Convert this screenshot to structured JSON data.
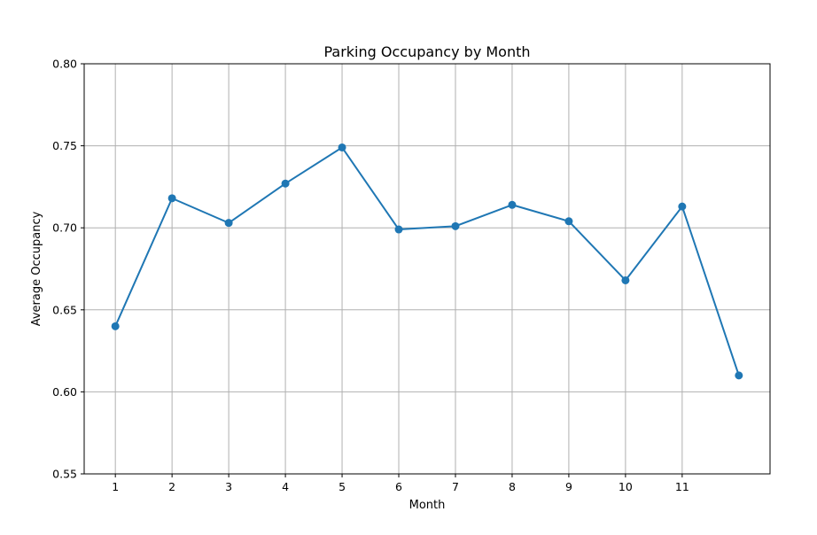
{
  "chart_data": {
    "type": "line",
    "title": "Parking Occupancy by Month",
    "xlabel": "Month",
    "ylabel": "Average Occupancy",
    "x_ticks": [
      1,
      2,
      3,
      4,
      5,
      6,
      7,
      8,
      9,
      10,
      11
    ],
    "x_range": [
      0.45,
      12.55
    ],
    "y_ticks": [
      "0.55",
      "0.60",
      "0.65",
      "0.70",
      "0.75",
      "0.80"
    ],
    "ylim": [
      0.55,
      0.8
    ],
    "grid": true,
    "line_color": "#1f77b4",
    "series": [
      {
        "x": [
          1,
          2,
          3,
          4,
          5,
          6,
          7,
          8,
          9,
          10,
          11,
          12
        ],
        "values": [
          0.64,
          0.718,
          0.703,
          0.727,
          0.749,
          0.699,
          0.701,
          0.714,
          0.704,
          0.668,
          0.713,
          0.61
        ]
      }
    ]
  }
}
